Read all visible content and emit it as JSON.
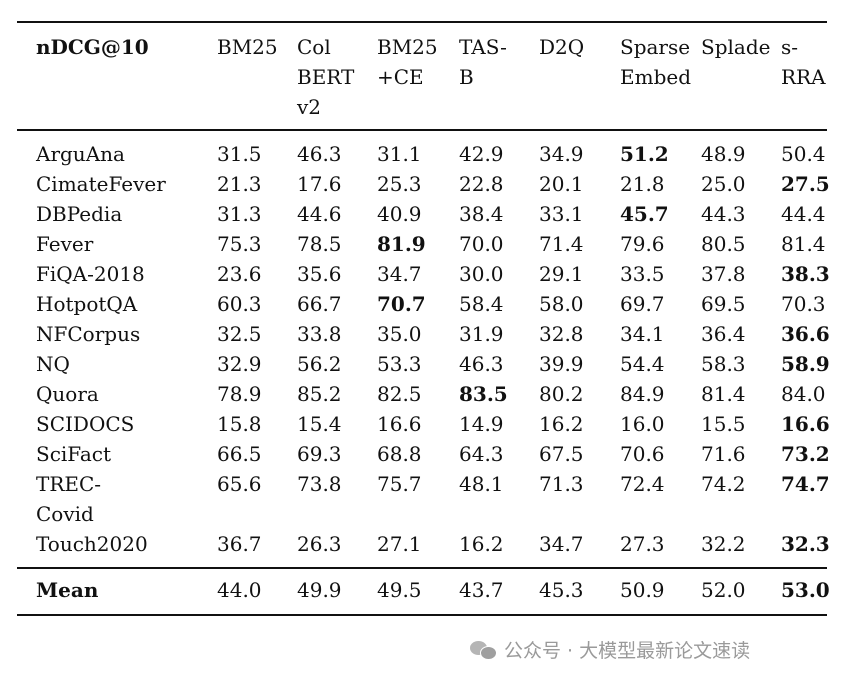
{
  "table": {
    "metric_header": "nDCG@10",
    "columns": [
      {
        "lines": [
          "BM25"
        ]
      },
      {
        "lines": [
          "Col",
          "BERT",
          "v2"
        ]
      },
      {
        "lines": [
          "BM25",
          "+CE"
        ]
      },
      {
        "lines": [
          "TAS-",
          "B"
        ]
      },
      {
        "lines": [
          "D2Q"
        ]
      },
      {
        "lines": [
          "Sparse",
          "Embed"
        ]
      },
      {
        "lines": [
          "Splade"
        ]
      },
      {
        "lines": [
          "s-",
          "RRA"
        ]
      }
    ],
    "rows": [
      {
        "dataset": "ArguAna",
        "values": [
          "31.5",
          "46.3",
          "31.1",
          "42.9",
          "34.9",
          "51.2",
          "48.9",
          "50.4"
        ],
        "bold": 5
      },
      {
        "dataset": "CimateFever",
        "values": [
          "21.3",
          "17.6",
          "25.3",
          "22.8",
          "20.1",
          "21.8",
          "25.0",
          "27.5"
        ],
        "bold": 7
      },
      {
        "dataset": "DBPedia",
        "values": [
          "31.3",
          "44.6",
          "40.9",
          "38.4",
          "33.1",
          "45.7",
          "44.3",
          "44.4"
        ],
        "bold": 5
      },
      {
        "dataset": "Fever",
        "values": [
          "75.3",
          "78.5",
          "81.9",
          "70.0",
          "71.4",
          "79.6",
          "80.5",
          "81.4"
        ],
        "bold": 2
      },
      {
        "dataset": "FiQA-2018",
        "values": [
          "23.6",
          "35.6",
          "34.7",
          "30.0",
          "29.1",
          "33.5",
          "37.8",
          "38.3"
        ],
        "bold": 7
      },
      {
        "dataset": "HotpotQA",
        "values": [
          "60.3",
          "66.7",
          "70.7",
          "58.4",
          "58.0",
          "69.7",
          "69.5",
          "70.3"
        ],
        "bold": 2
      },
      {
        "dataset": "NFCorpus",
        "values": [
          "32.5",
          "33.8",
          "35.0",
          "31.9",
          "32.8",
          "34.1",
          "36.4",
          "36.6"
        ],
        "bold": 7
      },
      {
        "dataset": "NQ",
        "values": [
          "32.9",
          "56.2",
          "53.3",
          "46.3",
          "39.9",
          "54.4",
          "58.3",
          "58.9"
        ],
        "bold": 7
      },
      {
        "dataset": "Quora",
        "values": [
          "78.9",
          "85.2",
          "82.5",
          "83.5",
          "80.2",
          "84.9",
          "81.4",
          "84.0"
        ],
        "bold": 3
      },
      {
        "dataset": "SCIDOCS",
        "values": [
          "15.8",
          "15.4",
          "16.6",
          "14.9",
          "16.2",
          "16.0",
          "15.5",
          "16.6"
        ],
        "bold": 7
      },
      {
        "dataset": "SciFact",
        "values": [
          "66.5",
          "69.3",
          "68.8",
          "64.3",
          "67.5",
          "70.6",
          "71.6",
          "73.2"
        ],
        "bold": 7
      },
      {
        "dataset": "TREC-\nCovid",
        "values": [
          "65.6",
          "73.8",
          "75.7",
          "48.1",
          "71.3",
          "72.4",
          "74.2",
          "74.7"
        ],
        "bold": 7
      },
      {
        "dataset": "Touch2020",
        "values": [
          "36.7",
          "26.3",
          "27.1",
          "16.2",
          "34.7",
          "27.3",
          "32.2",
          "32.3"
        ],
        "bold": 7
      }
    ],
    "mean": {
      "label": "Mean",
      "values": [
        "44.0",
        "49.9",
        "49.5",
        "43.7",
        "45.3",
        "50.9",
        "52.0",
        "53.0"
      ],
      "bold": 7
    }
  },
  "watermark": {
    "text": "公众号 · 大模型最新论文速读",
    "icon": "wechat-icon"
  }
}
